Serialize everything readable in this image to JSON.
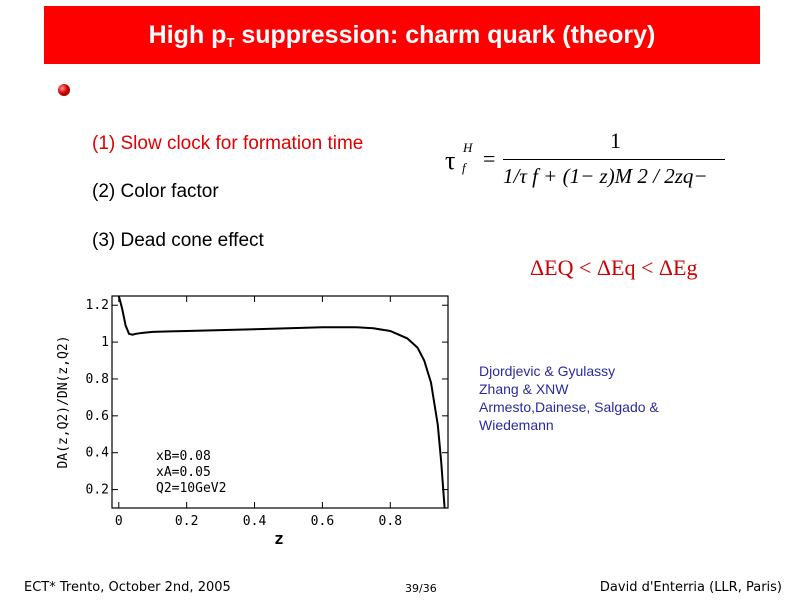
{
  "slide": {
    "title_pre": "High p",
    "title_sub": "T",
    "title_post": " suppression: charm quark (theory)",
    "items": [
      "(1) Slow clock for formation time",
      "(2) Color factor",
      "(3) Dead cone effect"
    ],
    "formula": {
      "lhs": "τ",
      "lhs_sup": "H",
      "lhs_sub": "f",
      "equals": "=",
      "numerator": "1",
      "denominator": "1/τ f + (1− z)M 2 / 2zq−"
    },
    "energy_ordering": "ΔEQ < ΔEq < ΔEg",
    "references": [
      "Djordjevic & Gyulassy",
      "Zhang & XNW",
      "Armesto,Dainese, Salgado &",
      "Wiedemann"
    ],
    "footer": {
      "left": "ECT* Trento, October 2nd, 2005",
      "center": "39/36",
      "right": "David d'Enterria (LLR, Paris)"
    }
  },
  "chart_data": {
    "type": "line",
    "xlabel": "z",
    "ylabel": "DA(z,Q2)/DN(z,Q2)",
    "xlim": [
      -0.02,
      0.97
    ],
    "ylim": [
      0.1,
      1.25
    ],
    "xticks": [
      0,
      0.2,
      0.4,
      0.6,
      0.8
    ],
    "xtick_labels": [
      "0",
      "0.2",
      "0.4",
      "0.6",
      "0.8"
    ],
    "yticks": [
      0.2,
      0.4,
      0.6,
      0.8,
      1,
      1.2
    ],
    "ytick_labels": [
      "0.2",
      "0.4",
      "0.6",
      "0.8",
      "1",
      "1.2"
    ],
    "annotations": [
      "xB=0.08",
      "xA=0.05",
      "Q2=10GeV2"
    ],
    "series": [
      {
        "x": [
          0.0,
          0.01,
          0.02,
          0.03,
          0.04,
          0.05,
          0.07,
          0.1,
          0.15,
          0.2,
          0.3,
          0.4,
          0.5,
          0.6,
          0.7,
          0.75,
          0.8,
          0.85,
          0.88,
          0.9,
          0.92,
          0.94,
          0.95,
          0.96
        ],
        "y": [
          1.25,
          1.18,
          1.09,
          1.045,
          1.04,
          1.045,
          1.05,
          1.055,
          1.058,
          1.06,
          1.065,
          1.07,
          1.075,
          1.08,
          1.08,
          1.075,
          1.06,
          1.02,
          0.97,
          0.9,
          0.78,
          0.55,
          0.35,
          0.1
        ]
      }
    ]
  }
}
